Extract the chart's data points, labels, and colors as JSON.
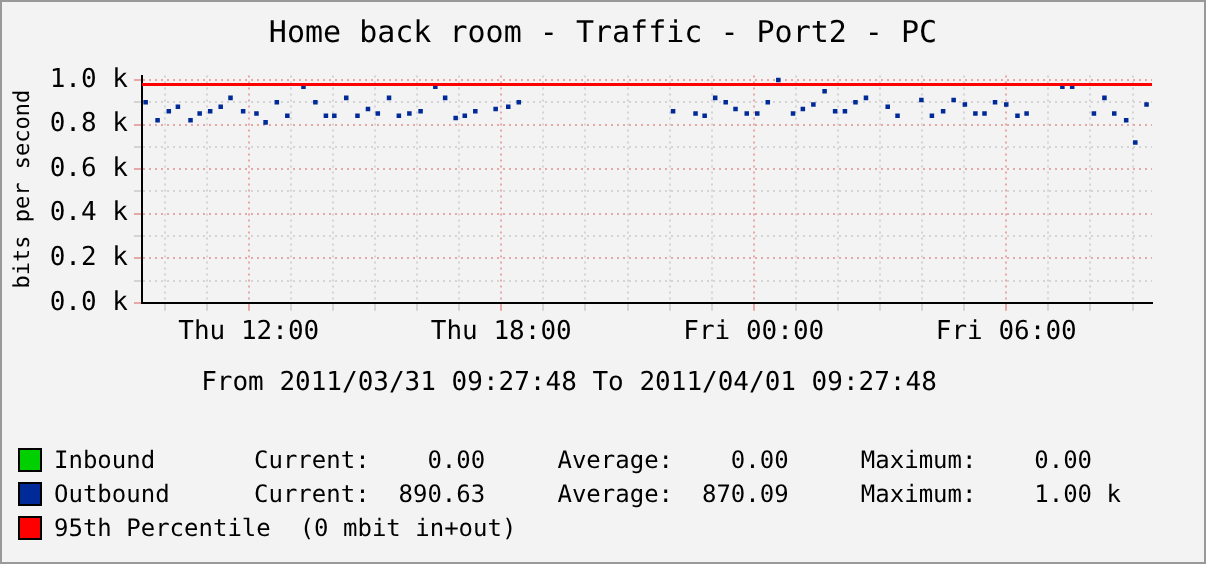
{
  "chart_data": {
    "type": "scatter",
    "title": "Home back room - Traffic - Port2 - PC",
    "ylabel": "bits per second",
    "marker": "square",
    "x": [
      "2011-03-31T09:33",
      "2011-03-31T09:50",
      "2011-03-31T10:06",
      "2011-03-31T10:19",
      "2011-03-31T10:37",
      "2011-03-31T10:50",
      "2011-03-31T11:05",
      "2011-03-31T11:20",
      "2011-03-31T11:34",
      "2011-03-31T11:52",
      "2011-03-31T12:11",
      "2011-03-31T12:24",
      "2011-03-31T12:40",
      "2011-03-31T12:55",
      "2011-03-31T13:18",
      "2011-03-31T13:35",
      "2011-03-31T13:50",
      "2011-03-31T14:02",
      "2011-03-31T14:19",
      "2011-03-31T14:35",
      "2011-03-31T14:50",
      "2011-03-31T15:04",
      "2011-03-31T15:20",
      "2011-03-31T15:34",
      "2011-03-31T15:49",
      "2011-03-31T16:05",
      "2011-03-31T16:26",
      "2011-03-31T16:40",
      "2011-03-31T16:55",
      "2011-03-31T17:08",
      "2011-03-31T17:23",
      "2011-03-31T17:52",
      "2011-03-31T18:10",
      "2011-03-31T18:25",
      "2011-03-31T22:05",
      "2011-03-31T22:37",
      "2011-03-31T22:50",
      "2011-03-31T23:05",
      "2011-03-31T23:20",
      "2011-03-31T23:34",
      "2011-03-31T23:50",
      "2011-04-01T00:05",
      "2011-04-01T00:20",
      "2011-04-01T00:35",
      "2011-04-01T00:56",
      "2011-04-01T01:10",
      "2011-04-01T01:25",
      "2011-04-01T01:41",
      "2011-04-01T01:56",
      "2011-04-01T02:10",
      "2011-04-01T02:25",
      "2011-04-01T02:40",
      "2011-04-01T03:11",
      "2011-04-01T03:25",
      "2011-04-01T03:59",
      "2011-04-01T04:14",
      "2011-04-01T04:30",
      "2011-04-01T04:45",
      "2011-04-01T05:01",
      "2011-04-01T05:16",
      "2011-04-01T05:29",
      "2011-04-01T05:44",
      "2011-04-01T06:00",
      "2011-04-01T06:16",
      "2011-04-01T06:29",
      "2011-04-01T07:20",
      "2011-04-01T07:34",
      "2011-04-01T08:05",
      "2011-04-01T08:20",
      "2011-04-01T08:34",
      "2011-04-01T08:51",
      "2011-04-01T09:04",
      "2011-04-01T09:20"
    ],
    "series": [
      {
        "name": "Inbound",
        "color": "#00cf00",
        "values": [
          null,
          null,
          null,
          null,
          null,
          null,
          null,
          null,
          null,
          null,
          null,
          null,
          null,
          null,
          null,
          null,
          null,
          null,
          null,
          null,
          null,
          null,
          null,
          null,
          null,
          null,
          null,
          null,
          null,
          null,
          null,
          null,
          null,
          null,
          null,
          null,
          null,
          null,
          null,
          null,
          null,
          null,
          null,
          null,
          null,
          null,
          null,
          null,
          null,
          null,
          null,
          null,
          null,
          null,
          null,
          null,
          null,
          null,
          null,
          null,
          null,
          null,
          null,
          null,
          null,
          null,
          null,
          null,
          null,
          null,
          null,
          null,
          null
        ]
      },
      {
        "name": "Outbound",
        "color": "#002a97",
        "values": [
          0.9,
          0.82,
          0.86,
          0.88,
          0.82,
          0.85,
          0.86,
          0.88,
          0.92,
          0.86,
          0.85,
          0.81,
          0.9,
          0.84,
          0.97,
          0.9,
          0.84,
          0.84,
          0.92,
          0.84,
          0.87,
          0.85,
          0.92,
          0.84,
          0.85,
          0.86,
          0.97,
          0.92,
          0.83,
          0.84,
          0.86,
          0.87,
          0.88,
          0.9,
          0.86,
          0.85,
          0.84,
          0.92,
          0.9,
          0.87,
          0.85,
          0.85,
          0.9,
          1.0,
          0.85,
          0.87,
          0.89,
          0.95,
          0.86,
          0.86,
          0.9,
          0.92,
          0.88,
          0.84,
          0.91,
          0.84,
          0.86,
          0.91,
          0.89,
          0.85,
          0.85,
          0.9,
          0.89,
          0.84,
          0.85,
          0.97,
          0.97,
          0.85,
          0.92,
          0.85,
          0.82,
          0.72,
          0.89
        ]
      }
    ],
    "xlim": [
      "2011-03-31T09:27:48",
      "2011-04-01T09:27:48"
    ],
    "xticks": [
      {
        "value": "2011-03-31T10:00",
        "label": null
      },
      {
        "value": "2011-03-31T11:00",
        "label": null
      },
      {
        "value": "2011-03-31T12:00",
        "label": "Thu 12:00"
      },
      {
        "value": "2011-03-31T13:00",
        "label": null
      },
      {
        "value": "2011-03-31T14:00",
        "label": null
      },
      {
        "value": "2011-03-31T15:00",
        "label": null
      },
      {
        "value": "2011-03-31T16:00",
        "label": null
      },
      {
        "value": "2011-03-31T17:00",
        "label": null
      },
      {
        "value": "2011-03-31T18:00",
        "label": "Thu 18:00"
      },
      {
        "value": "2011-03-31T19:00",
        "label": null
      },
      {
        "value": "2011-03-31T20:00",
        "label": null
      },
      {
        "value": "2011-03-31T21:00",
        "label": null
      },
      {
        "value": "2011-03-31T22:00",
        "label": null
      },
      {
        "value": "2011-03-31T23:00",
        "label": null
      },
      {
        "value": "2011-04-01T00:00",
        "label": "Fri 00:00"
      },
      {
        "value": "2011-04-01T01:00",
        "label": null
      },
      {
        "value": "2011-04-01T02:00",
        "label": null
      },
      {
        "value": "2011-04-01T03:00",
        "label": null
      },
      {
        "value": "2011-04-01T04:00",
        "label": null
      },
      {
        "value": "2011-04-01T05:00",
        "label": null
      },
      {
        "value": "2011-04-01T06:00",
        "label": "Fri 06:00"
      },
      {
        "value": "2011-04-01T07:00",
        "label": null
      },
      {
        "value": "2011-04-01T08:00",
        "label": null
      },
      {
        "value": "2011-04-01T09:00",
        "label": null
      }
    ],
    "ylim": [
      0,
      1.02
    ],
    "yticks": [
      {
        "value": 0,
        "label": "0.0 k"
      },
      {
        "value": 0.1,
        "label": null
      },
      {
        "value": 0.2,
        "label": "0.2 k"
      },
      {
        "value": 0.3,
        "label": null
      },
      {
        "value": 0.4,
        "label": "0.4 k"
      },
      {
        "value": 0.5,
        "label": null
      },
      {
        "value": 0.6,
        "label": "0.6 k"
      },
      {
        "value": 0.7,
        "label": null
      },
      {
        "value": 0.8,
        "label": "0.8 k"
      },
      {
        "value": 0.9,
        "label": null
      },
      {
        "value": 1.0,
        "label": "1.0 k"
      }
    ],
    "grid": true,
    "legend": "bottom",
    "ref_lines": [
      {
        "axis": "y",
        "value": 0.98,
        "label": "95th Percentile  (0 mbit in+out)",
        "color": "#ff0000"
      }
    ],
    "annotations": [
      "From 2011/03/31 09:27:48 To 2011/04/01 09:27:48",
      "Current:    0.00     Average:    0.00     Maximum:    0.00",
      "Current:  890.63     Average:  870.09     Maximum:    1.00 k"
    ]
  }
}
